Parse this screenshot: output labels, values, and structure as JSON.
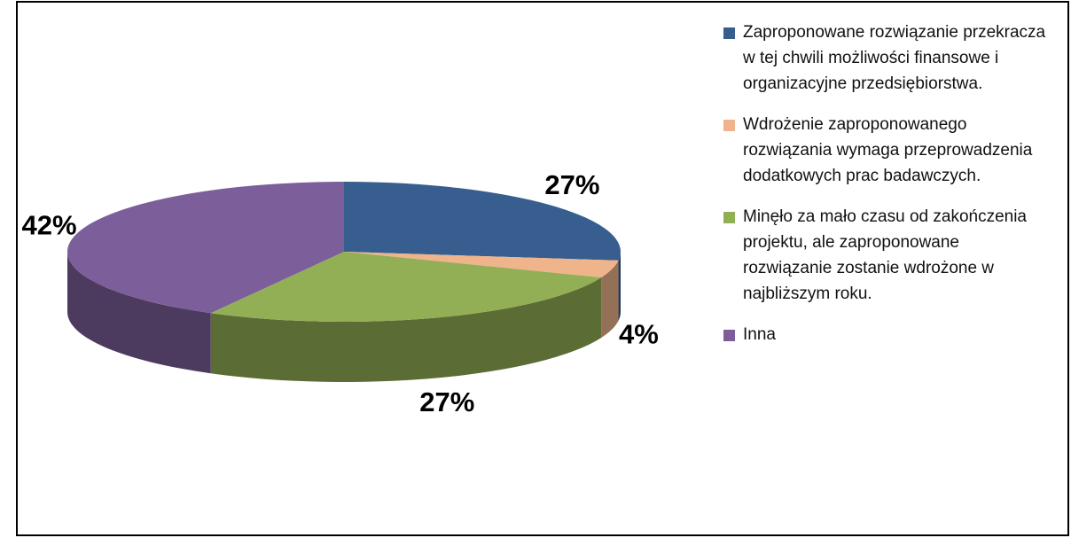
{
  "chart_data": {
    "type": "pie",
    "categories": [
      "Zaproponowane rozwiązanie przekracza w tej chwili możliwości finansowe i organizacyjne przedsiębiorstwa.",
      "Wdrożenie zaproponowanego rozwiązania wymaga przeprowadzenia dodatkowych prac badawczych.",
      "Minęło za mało czasu od zakończenia projektu, ale zaproponowane rozwiązanie zostanie wdrożone w najbliższym roku.",
      "Inna"
    ],
    "values": [
      27,
      4,
      27,
      42
    ],
    "value_labels": [
      "27%",
      "4%",
      "27%",
      "42%"
    ],
    "colors": [
      "#375e8e",
      "#efb48b",
      "#93af56",
      "#7c5e9a"
    ],
    "legend": "right"
  }
}
